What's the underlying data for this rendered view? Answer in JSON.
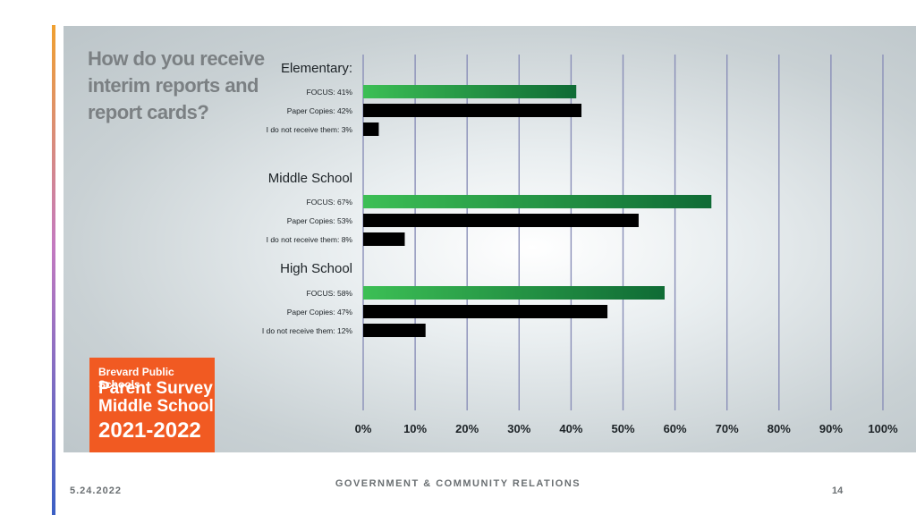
{
  "slide": {
    "question": "How do you receive interim reports and report cards?",
    "badge": {
      "line1": "Brevard Public Schools",
      "line2": "Parent Survey Middle School",
      "line3": "2021-2022"
    },
    "footer": {
      "date": "5.24.2022",
      "center": "GOVERNMENT & COMMUNITY RELATIONS",
      "page": "14"
    }
  },
  "chart_data": {
    "type": "bar",
    "orientation": "horizontal",
    "xlim": [
      0,
      100
    ],
    "x_ticks": [
      "0%",
      "10%",
      "20%",
      "30%",
      "40%",
      "50%",
      "60%",
      "70%",
      "80%",
      "90%",
      "100%"
    ],
    "grid": "vertical",
    "colors": {
      "FOCUS": "#2e9e4a",
      "Paper Copies": "#2f6fbf",
      "I do not receive them": "#e0181c"
    },
    "groups": [
      {
        "name": "Elementary:",
        "bars": [
          {
            "label": "FOCUS: 41%",
            "category": "FOCUS",
            "value": 41
          },
          {
            "label": "Paper Copies: 42%",
            "category": "Paper Copies",
            "value": 42
          },
          {
            "label": "I do not receive them: 3%",
            "category": "I do not receive them",
            "value": 3
          }
        ]
      },
      {
        "name": "Middle School",
        "bars": [
          {
            "label": "FOCUS: 67%",
            "category": "FOCUS",
            "value": 67
          },
          {
            "label": "Paper Copies: 53%",
            "category": "Paper Copies",
            "value": 53
          },
          {
            "label": "I do not receive them: 8%",
            "category": "I do not receive them",
            "value": 8
          }
        ]
      },
      {
        "name": "High School",
        "bars": [
          {
            "label": "FOCUS: 58%",
            "category": "FOCUS",
            "value": 58
          },
          {
            "label": "Paper Copies: 47%",
            "category": "Paper Copies",
            "value": 47
          },
          {
            "label": "I do not receive them: 12%",
            "category": "I do not receive them",
            "value": 12
          }
        ]
      }
    ]
  }
}
